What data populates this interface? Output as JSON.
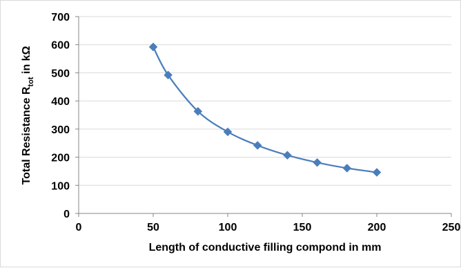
{
  "chart_data": {
    "type": "scatter",
    "title": "",
    "xlabel": "Length of conductive filling compond  in mm",
    "ylabel": {
      "main": "Total Resistance R",
      "subscript": "tot",
      "suffix": " in kΩ"
    },
    "xlim": [
      0,
      250
    ],
    "ylim": [
      0,
      700
    ],
    "x_ticks": [
      0,
      50,
      100,
      150,
      200,
      250
    ],
    "y_ticks": [
      0,
      100,
      200,
      300,
      400,
      500,
      600,
      700
    ],
    "grid": "horizontal",
    "legend": "none",
    "line_style": "smoothed line with diamond markers",
    "series": [
      {
        "color": "#4a7ebb",
        "marker": "diamond",
        "points": [
          {
            "x": 50,
            "y": 592
          },
          {
            "x": 60,
            "y": 492
          },
          {
            "x": 80,
            "y": 363
          },
          {
            "x": 100,
            "y": 290
          },
          {
            "x": 120,
            "y": 242
          },
          {
            "x": 140,
            "y": 207
          },
          {
            "x": 160,
            "y": 181
          },
          {
            "x": 180,
            "y": 161
          },
          {
            "x": 200,
            "y": 146
          }
        ]
      }
    ]
  }
}
